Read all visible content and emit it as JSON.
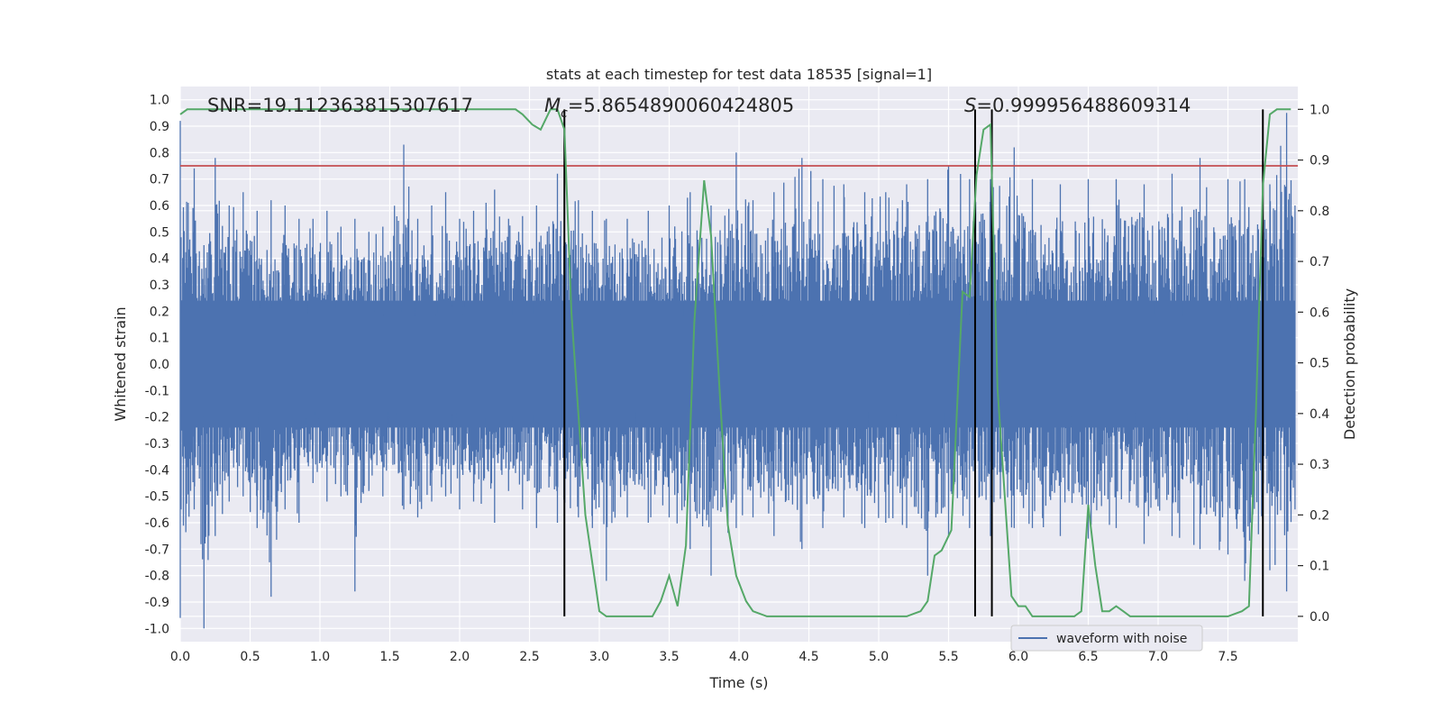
{
  "chart_data": {
    "type": "line",
    "title": "stats at each timestep for test data 18535 [signal=1]",
    "xlabel": "Time (s)",
    "ylabel_left": "Whitened strain",
    "ylabel_right": "Detection probability",
    "xlim": [
      0.0,
      8.0
    ],
    "ylim_left": [
      -1.05,
      1.05
    ],
    "ylim_right": [
      -0.05,
      1.045
    ],
    "x_ticks": [
      "0.0",
      "0.5",
      "1.0",
      "1.5",
      "2.0",
      "2.5",
      "3.0",
      "3.5",
      "4.0",
      "4.5",
      "5.0",
      "5.5",
      "6.0",
      "6.5",
      "7.0",
      "7.5"
    ],
    "y_left_ticks": [
      "1.0",
      "0.9",
      "0.8",
      "0.7",
      "0.6",
      "0.5",
      "0.4",
      "0.3",
      "0.2",
      "0.1",
      "0.0",
      "-0.1",
      "-0.2",
      "-0.3",
      "-0.4",
      "-0.5",
      "-0.6",
      "-0.7",
      "-0.8",
      "-0.9",
      "-1.0"
    ],
    "y_right_ticks": [
      "1.0",
      "0.9",
      "0.8",
      "0.7",
      "0.6",
      "0.5",
      "0.4",
      "0.3",
      "0.2",
      "0.1",
      "0.0"
    ],
    "annotations": {
      "snr": "SNR=19.112363815307617",
      "mc_symbol": "M",
      "mc_sub": "c",
      "mc_value": "=5.8654890060424805",
      "s_symbol": "S",
      "s_value": "=0.999956488609314"
    },
    "threshold": {
      "value": 0.75,
      "color": "#c44e52"
    },
    "vertical_markers": [
      2.75,
      5.69,
      5.81,
      7.75
    ],
    "legend": {
      "label": "waveform with noise",
      "placement": "lower-right"
    },
    "series": [
      {
        "name": "waveform with noise",
        "color": "#4c72b0",
        "axis": "left",
        "description": "dense noisy strain, sample envelope (time, max, min)",
        "envelope": [
          [
            0.0,
            0.92,
            -0.96
          ],
          [
            0.1,
            0.74,
            -0.55
          ],
          [
            0.17,
            0.45,
            -1.0
          ],
          [
            0.25,
            0.78,
            -0.65
          ],
          [
            0.35,
            0.6,
            -0.52
          ],
          [
            0.45,
            0.65,
            -0.5
          ],
          [
            0.55,
            0.58,
            -0.62
          ],
          [
            0.65,
            0.62,
            -0.88
          ],
          [
            0.75,
            0.6,
            -0.55
          ],
          [
            0.85,
            0.55,
            -0.6
          ],
          [
            0.95,
            0.55,
            -0.45
          ],
          [
            1.05,
            0.58,
            -0.52
          ],
          [
            1.15,
            0.52,
            -0.5
          ],
          [
            1.25,
            0.55,
            -0.86
          ],
          [
            1.35,
            0.5,
            -0.48
          ],
          [
            1.45,
            0.52,
            -0.5
          ],
          [
            1.6,
            0.83,
            -0.55
          ],
          [
            1.7,
            0.55,
            -0.58
          ],
          [
            1.8,
            0.6,
            -0.52
          ],
          [
            1.9,
            0.65,
            -0.5
          ],
          [
            2.0,
            0.55,
            -0.55
          ],
          [
            2.1,
            0.58,
            -0.52
          ],
          [
            2.25,
            0.66,
            -0.6
          ],
          [
            2.35,
            0.55,
            -0.48
          ],
          [
            2.45,
            0.56,
            -0.55
          ],
          [
            2.55,
            0.6,
            -0.62
          ],
          [
            2.7,
            0.72,
            -0.6
          ],
          [
            2.85,
            0.62,
            -0.58
          ],
          [
            2.95,
            0.58,
            -0.62
          ],
          [
            3.05,
            0.55,
            -0.82
          ],
          [
            3.2,
            0.55,
            -0.58
          ],
          [
            3.35,
            0.58,
            -0.6
          ],
          [
            3.5,
            0.6,
            -0.58
          ],
          [
            3.65,
            0.65,
            -0.7
          ],
          [
            3.8,
            0.6,
            -0.8
          ],
          [
            3.98,
            0.8,
            -0.62
          ],
          [
            4.1,
            0.62,
            -0.58
          ],
          [
            4.25,
            0.65,
            -0.65
          ],
          [
            4.45,
            0.78,
            -0.7
          ],
          [
            4.6,
            0.7,
            -0.62
          ],
          [
            4.75,
            0.68,
            -0.58
          ],
          [
            4.9,
            0.65,
            -0.62
          ],
          [
            5.05,
            0.65,
            -0.6
          ],
          [
            5.2,
            0.68,
            -0.62
          ],
          [
            5.35,
            0.7,
            -0.8
          ],
          [
            5.5,
            0.75,
            -0.65
          ],
          [
            5.65,
            0.7,
            -0.62
          ],
          [
            5.8,
            0.7,
            -0.65
          ],
          [
            5.97,
            0.82,
            -0.62
          ],
          [
            6.1,
            0.7,
            -0.62
          ],
          [
            6.3,
            0.68,
            -0.65
          ],
          [
            6.5,
            0.7,
            -0.66
          ],
          [
            6.7,
            0.7,
            -0.62
          ],
          [
            6.9,
            0.68,
            -0.68
          ],
          [
            7.1,
            0.72,
            -0.65
          ],
          [
            7.3,
            0.78,
            -0.7
          ],
          [
            7.5,
            0.7,
            -0.72
          ],
          [
            7.62,
            0.7,
            -0.82
          ],
          [
            7.8,
            0.68,
            -0.78
          ],
          [
            7.92,
            0.95,
            -0.86
          ],
          [
            7.98,
            0.6,
            -0.55
          ]
        ]
      },
      {
        "name": "detection probability",
        "color": "#55a868",
        "axis": "right",
        "x": [
          0.0,
          0.05,
          0.1,
          2.4,
          2.45,
          2.52,
          2.58,
          2.65,
          2.7,
          2.75,
          2.8,
          2.9,
          3.0,
          3.05,
          3.1,
          3.2,
          3.3,
          3.38,
          3.44,
          3.5,
          3.56,
          3.62,
          3.68,
          3.75,
          3.8,
          3.86,
          3.92,
          3.98,
          4.05,
          4.1,
          4.2,
          4.5,
          5.0,
          5.2,
          5.3,
          5.35,
          5.4,
          5.45,
          5.52,
          5.6,
          5.65,
          5.7,
          5.75,
          5.8,
          5.85,
          5.95,
          6.0,
          6.05,
          6.1,
          6.15,
          6.3,
          6.4,
          6.45,
          6.5,
          6.55,
          6.6,
          6.65,
          6.7,
          6.75,
          6.8,
          6.9,
          7.0,
          7.5,
          7.6,
          7.65,
          7.7,
          7.75,
          7.8,
          7.85,
          7.9,
          7.95
        ],
        "y": [
          0.99,
          1.0,
          1.0,
          1.0,
          0.99,
          0.97,
          0.96,
          1.0,
          1.0,
          0.96,
          0.6,
          0.2,
          0.01,
          0.0,
          0.0,
          0.0,
          0.0,
          0.0,
          0.03,
          0.08,
          0.02,
          0.14,
          0.58,
          0.86,
          0.75,
          0.45,
          0.18,
          0.08,
          0.03,
          0.01,
          0.0,
          0.0,
          0.0,
          0.0,
          0.01,
          0.03,
          0.12,
          0.13,
          0.17,
          0.64,
          0.63,
          0.87,
          0.96,
          0.97,
          0.45,
          0.04,
          0.02,
          0.02,
          0.0,
          0.0,
          0.0,
          0.0,
          0.01,
          0.22,
          0.1,
          0.01,
          0.01,
          0.02,
          0.01,
          0.0,
          0.0,
          0.0,
          0.0,
          0.01,
          0.02,
          0.4,
          0.85,
          0.99,
          1.0,
          1.0,
          1.0
        ]
      }
    ]
  }
}
